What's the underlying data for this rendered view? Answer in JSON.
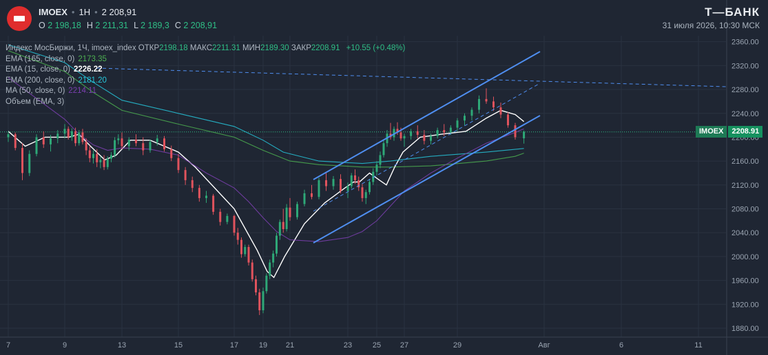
{
  "header": {
    "symbol": "IMOEX",
    "timeframe": "1H",
    "last_price": "2 208,91",
    "ohlc": {
      "o_label": "O",
      "o": "2 198,18",
      "h_label": "H",
      "h": "2 211,31",
      "l_label": "L",
      "l": "2 189,3",
      "c_label": "C",
      "c": "2 208,91"
    },
    "brand": "Т—БАНК",
    "datetime": "31 июля 2026, 10:30 МСК"
  },
  "legend": {
    "main": "Индекс МосБиржи, 1Ч, imoex_index",
    "open_label": "ОТКР",
    "open": "2198.18",
    "high_label": "МАКС",
    "high": "2211.31",
    "low_label": "МИН",
    "low": "2189.30",
    "close_label": "ЗАКР",
    "close": "2208.91",
    "change": "+10.55 (+0.48%)",
    "indicators": [
      {
        "label": "EMA (165, close, 0)",
        "value": "2173.35",
        "color": "#4caf50"
      },
      {
        "label": "EMA (15, close, 0)",
        "value": "2226.22",
        "color": "#ffffff"
      },
      {
        "label": "EMA (200, close, 0)",
        "value": "2181.20",
        "color": "#26c6da"
      },
      {
        "label": "MA (50, close, 0)",
        "value": "2214.11",
        "color": "#7b3fb0"
      },
      {
        "label": "Объем (EMA, 3)",
        "value": "",
        "color": "#aeb7c2"
      }
    ]
  },
  "price_tag": {
    "name": "IMOEX",
    "price": "2208.91"
  },
  "colors": {
    "up": "#2ea877",
    "down": "#e0535d",
    "channel": "#4f8ef0",
    "ema15": "#ffffff",
    "ema165": "#4caf50",
    "ema200": "#26c6da",
    "ma50": "#7b3fb0",
    "grid": "#2a3240",
    "bg": "#1f2633"
  },
  "chart_data": {
    "type": "line",
    "ylim": [
      1865,
      2370
    ],
    "y_ticks": [
      "2360.00",
      "2320.00",
      "2280.00",
      "2240.00",
      "2200.00",
      "2160.00",
      "2120.00",
      "2080.00",
      "2040.00",
      "2000.00",
      "1960.00",
      "1920.00",
      "1880.00"
    ],
    "x_ticks": [
      "7",
      "9",
      "13",
      "15",
      "17",
      "19",
      "21",
      "23",
      "25",
      "27",
      "29",
      "Авг",
      "6",
      "11"
    ],
    "x_range": [
      7,
      43
    ],
    "last_date": 31.3,
    "grid": "on",
    "series": [
      {
        "name": "EMA (165, close, 0)",
        "points": [
          [
            7,
            2345
          ],
          [
            9,
            2310
          ],
          [
            11,
            2275
          ],
          [
            13,
            2245
          ],
          [
            15,
            2222
          ],
          [
            17,
            2200
          ],
          [
            19,
            2178
          ],
          [
            21,
            2160
          ],
          [
            22,
            2154
          ],
          [
            24,
            2150
          ],
          [
            26,
            2150
          ],
          [
            28,
            2152
          ],
          [
            30,
            2160
          ],
          [
            31,
            2168
          ],
          [
            31.3,
            2173.35
          ]
        ]
      },
      {
        "name": "EMA (15, close, 0)",
        "points": [
          [
            7,
            2210
          ],
          [
            7.6,
            2185
          ],
          [
            8.3,
            2200
          ],
          [
            9.3,
            2200
          ],
          [
            10,
            2205
          ],
          [
            10.8,
            2185
          ],
          [
            11.8,
            2162
          ],
          [
            12.6,
            2170
          ],
          [
            13.3,
            2195
          ],
          [
            14,
            2195
          ],
          [
            15,
            2175
          ],
          [
            15.6,
            2150
          ],
          [
            16.4,
            2110
          ],
          [
            17,
            2080
          ],
          [
            17.8,
            2045
          ],
          [
            18.6,
            2010
          ],
          [
            19.3,
            1975
          ],
          [
            19.8,
            1965
          ],
          [
            20.6,
            2000
          ],
          [
            21.5,
            2055
          ],
          [
            22.2,
            2090
          ],
          [
            22.9,
            2115
          ],
          [
            23.4,
            2125
          ],
          [
            23.8,
            2125
          ],
          [
            24.5,
            2140
          ],
          [
            25.2,
            2128
          ],
          [
            25.7,
            2120
          ],
          [
            26.3,
            2150
          ],
          [
            26.9,
            2175
          ],
          [
            27.6,
            2200
          ],
          [
            28.4,
            2205
          ],
          [
            29.3,
            2210
          ],
          [
            30,
            2232
          ],
          [
            30.5,
            2245
          ],
          [
            31,
            2238
          ],
          [
            31.3,
            2226.22
          ]
        ]
      },
      {
        "name": "EMA (200, close, 0)",
        "points": [
          [
            7,
            2355
          ],
          [
            9,
            2325
          ],
          [
            11,
            2292
          ],
          [
            13,
            2262
          ],
          [
            15,
            2240
          ],
          [
            17,
            2218
          ],
          [
            19,
            2195
          ],
          [
            20.5,
            2175
          ],
          [
            22,
            2160
          ],
          [
            24,
            2156
          ],
          [
            26,
            2160
          ],
          [
            28,
            2168
          ],
          [
            30,
            2175
          ],
          [
            31.3,
            2181.2
          ]
        ]
      },
      {
        "name": "MA (50, close, 0)",
        "points": [
          [
            7,
            2300
          ],
          [
            9,
            2230
          ],
          [
            10,
            2205
          ],
          [
            11,
            2187
          ],
          [
            12,
            2178
          ],
          [
            13,
            2182
          ],
          [
            14,
            2180
          ],
          [
            15,
            2170
          ],
          [
            16,
            2140
          ],
          [
            17,
            2115
          ],
          [
            18,
            2092
          ],
          [
            19,
            2065
          ],
          [
            20,
            2042
          ],
          [
            21,
            2028
          ],
          [
            22,
            2025
          ],
          [
            23,
            2032
          ],
          [
            24,
            2042
          ],
          [
            25,
            2060
          ],
          [
            26,
            2085
          ],
          [
            27,
            2110
          ],
          [
            28,
            2140
          ],
          [
            29,
            2165
          ],
          [
            30,
            2190
          ],
          [
            31,
            2208
          ],
          [
            31.3,
            2214.11
          ]
        ]
      }
    ],
    "candles": [
      [
        7,
        2200,
        2210,
        2192,
        2205
      ],
      [
        7.25,
        2205,
        2208,
        2178,
        2182
      ],
      [
        7.5,
        2182,
        2190,
        2128,
        2140
      ],
      [
        7.75,
        2140,
        2178,
        2135,
        2172
      ],
      [
        8,
        2172,
        2205,
        2168,
        2200
      ],
      [
        8.25,
        2200,
        2210,
        2182,
        2188
      ],
      [
        8.5,
        2188,
        2204,
        2176,
        2198
      ],
      [
        8.75,
        2198,
        2212,
        2190,
        2206
      ],
      [
        9,
        2206,
        2222,
        2198,
        2214
      ],
      [
        9.25,
        2214,
        2218,
        2196,
        2200
      ],
      [
        9.5,
        2200,
        2215,
        2194,
        2210
      ],
      [
        9.75,
        2210,
        2216,
        2185,
        2190
      ],
      [
        10,
        2190,
        2212,
        2186,
        2208
      ],
      [
        10.25,
        2208,
        2214,
        2188,
        2192
      ],
      [
        10.5,
        2192,
        2198,
        2170,
        2178
      ],
      [
        10.75,
        2178,
        2186,
        2158,
        2165
      ],
      [
        11,
        2165,
        2178,
        2156,
        2172
      ],
      [
        11.25,
        2172,
        2180,
        2150,
        2158
      ],
      [
        11.5,
        2158,
        2168,
        2148,
        2162
      ],
      [
        11.75,
        2162,
        2170,
        2145,
        2150
      ],
      [
        12,
        2150,
        2168,
        2146,
        2164
      ],
      [
        12.25,
        2164,
        2175,
        2158,
        2170
      ],
      [
        12.5,
        2170,
        2200,
        2166,
        2195
      ],
      [
        12.75,
        2195,
        2205,
        2188,
        2198
      ],
      [
        13,
        2198,
        2208,
        2180,
        2185
      ],
      [
        13.25,
        2185,
        2200,
        2178,
        2196
      ],
      [
        13.5,
        2196,
        2205,
        2185,
        2190
      ],
      [
        13.75,
        2190,
        2200,
        2170,
        2178
      ],
      [
        14,
        2178,
        2196,
        2174,
        2192
      ],
      [
        14.25,
        2192,
        2204,
        2186,
        2198
      ],
      [
        14.5,
        2198,
        2202,
        2176,
        2180
      ],
      [
        14.75,
        2180,
        2186,
        2160,
        2165
      ],
      [
        15,
        2165,
        2172,
        2140,
        2145
      ],
      [
        15.25,
        2145,
        2150,
        2120,
        2128
      ],
      [
        15.5,
        2128,
        2134,
        2108,
        2115
      ],
      [
        15.75,
        2115,
        2120,
        2092,
        2098
      ],
      [
        16,
        2098,
        2110,
        2090,
        2102
      ],
      [
        16.25,
        2102,
        2105,
        2070,
        2075
      ],
      [
        16.5,
        2075,
        2080,
        2052,
        2058
      ],
      [
        16.75,
        2058,
        2072,
        2054,
        2068
      ],
      [
        17,
        2068,
        2070,
        2035,
        2040
      ],
      [
        17.25,
        2040,
        2048,
        2020,
        2028
      ],
      [
        17.5,
        2028,
        2032,
        1998,
        2004
      ],
      [
        17.75,
        2004,
        2020,
        2000,
        2016
      ],
      [
        18,
        2016,
        2020,
        1985,
        1990
      ],
      [
        18.25,
        1990,
        1995,
        1958,
        1962
      ],
      [
        18.5,
        1962,
        1968,
        1935,
        1940
      ],
      [
        18.75,
        1940,
        1946,
        1902,
        1910
      ],
      [
        19,
        1910,
        1948,
        1905,
        1942
      ],
      [
        19.25,
        1942,
        1972,
        1938,
        1968
      ],
      [
        19.5,
        1968,
        1995,
        1962,
        1990
      ],
      [
        19.75,
        1990,
        2010,
        1982,
        2005
      ],
      [
        20,
        2005,
        2040,
        2000,
        2035
      ],
      [
        20.25,
        2035,
        2062,
        2028,
        2058
      ],
      [
        20.5,
        2058,
        2080,
        2040,
        2046
      ],
      [
        20.75,
        2046,
        2088,
        2042,
        2082
      ],
      [
        21,
        2082,
        2098,
        2060,
        2066
      ],
      [
        21.25,
        2066,
        2092,
        2062,
        2088
      ],
      [
        21.5,
        2088,
        2112,
        2084,
        2106
      ],
      [
        21.75,
        2106,
        2120,
        2096,
        2100
      ],
      [
        22,
        2100,
        2132,
        2096,
        2128
      ],
      [
        22.25,
        2128,
        2140,
        2110,
        2118
      ],
      [
        22.5,
        2118,
        2135,
        2112,
        2130
      ],
      [
        22.75,
        2130,
        2138,
        2106,
        2110
      ],
      [
        23,
        2110,
        2124,
        2098,
        2118
      ],
      [
        23.25,
        2118,
        2140,
        2114,
        2136
      ],
      [
        23.5,
        2136,
        2146,
        2122,
        2128
      ],
      [
        23.75,
        2128,
        2134,
        2110,
        2116
      ],
      [
        24,
        2116,
        2122,
        2092,
        2098
      ],
      [
        24.25,
        2098,
        2112,
        2088,
        2108
      ],
      [
        24.5,
        2108,
        2130,
        2104,
        2125
      ],
      [
        24.75,
        2125,
        2148,
        2120,
        2142
      ],
      [
        25,
        2142,
        2160,
        2136,
        2154
      ],
      [
        25.25,
        2154,
        2176,
        2148,
        2170
      ],
      [
        25.5,
        2170,
        2196,
        2166,
        2190
      ],
      [
        25.75,
        2190,
        2212,
        2184,
        2206
      ],
      [
        26,
        2206,
        2224,
        2196,
        2200
      ],
      [
        26.25,
        2200,
        2218,
        2194,
        2214
      ],
      [
        26.5,
        2214,
        2225,
        2204,
        2208
      ],
      [
        26.75,
        2208,
        2216,
        2194,
        2198
      ],
      [
        27,
        2198,
        2206,
        2184,
        2202
      ],
      [
        27.25,
        2202,
        2214,
        2196,
        2210
      ],
      [
        27.5,
        2210,
        2220,
        2198,
        2204
      ],
      [
        27.75,
        2204,
        2212,
        2188,
        2194
      ],
      [
        28,
        2194,
        2206,
        2188,
        2202
      ],
      [
        28.25,
        2202,
        2216,
        2198,
        2212
      ],
      [
        28.5,
        2212,
        2222,
        2202,
        2208
      ],
      [
        28.75,
        2208,
        2220,
        2204,
        2216
      ],
      [
        29,
        2216,
        2232,
        2210,
        2228
      ],
      [
        29.25,
        2228,
        2240,
        2220,
        2236
      ],
      [
        29.5,
        2236,
        2250,
        2228,
        2246
      ],
      [
        29.75,
        2246,
        2270,
        2240,
        2264
      ],
      [
        30,
        2264,
        2282,
        2256,
        2260
      ],
      [
        30.25,
        2260,
        2268,
        2244,
        2250
      ],
      [
        30.5,
        2250,
        2258,
        2232,
        2238
      ],
      [
        30.75,
        2238,
        2242,
        2216,
        2220
      ],
      [
        31,
        2220,
        2224,
        2196,
        2200
      ],
      [
        31.3,
        2198.18,
        2211.31,
        2189.3,
        2208.91
      ]
    ],
    "volume_candles_note": ""
  }
}
